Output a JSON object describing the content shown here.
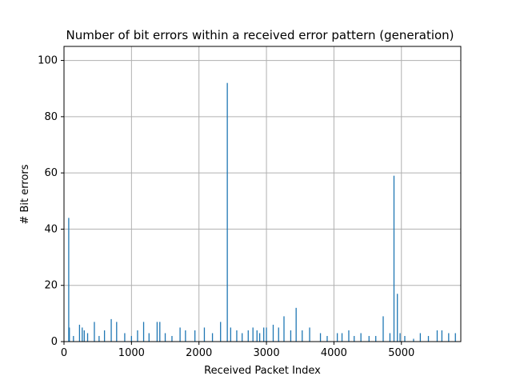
{
  "chart_data": {
    "type": "bar",
    "title": "Number of bit errors within a received error pattern (generation)",
    "xlabel": "Received Packet Index",
    "ylabel": "# Bit errors",
    "xlim": [
      0,
      5880
    ],
    "ylim": [
      0,
      105
    ],
    "xticks": [
      0,
      1000,
      2000,
      3000,
      4000,
      5000
    ],
    "yticks": [
      0,
      20,
      40,
      60,
      80,
      100
    ],
    "grid": true,
    "bar_color": "#1f77b4",
    "x": [
      70,
      80,
      140,
      230,
      270,
      300,
      350,
      450,
      520,
      600,
      700,
      780,
      900,
      1000,
      1090,
      1180,
      1260,
      1380,
      1420,
      1500,
      1600,
      1720,
      1800,
      1940,
      2080,
      2200,
      2320,
      2420,
      2470,
      2560,
      2640,
      2730,
      2800,
      2860,
      2900,
      2960,
      3000,
      3100,
      3180,
      3260,
      3360,
      3440,
      3530,
      3640,
      3800,
      3900,
      4050,
      4120,
      4220,
      4300,
      4400,
      4520,
      4620,
      4730,
      4830,
      4890,
      4940,
      4980,
      5050,
      5180,
      5280,
      5400,
      5530,
      5600,
      5700,
      5800
    ],
    "values": [
      44,
      5,
      2,
      6,
      5,
      4,
      3,
      7,
      2,
      4,
      8,
      7,
      3,
      2,
      4,
      7,
      3,
      7,
      7,
      3,
      2,
      5,
      4,
      4,
      5,
      3,
      7,
      92,
      5,
      4,
      3,
      4,
      5,
      4,
      3,
      5,
      5,
      6,
      5,
      9,
      4,
      12,
      4,
      5,
      3,
      2,
      3,
      3,
      4,
      2,
      3,
      2,
      2,
      9,
      3,
      59,
      17,
      3,
      2,
      1,
      3,
      2,
      4,
      4,
      3,
      3
    ]
  }
}
